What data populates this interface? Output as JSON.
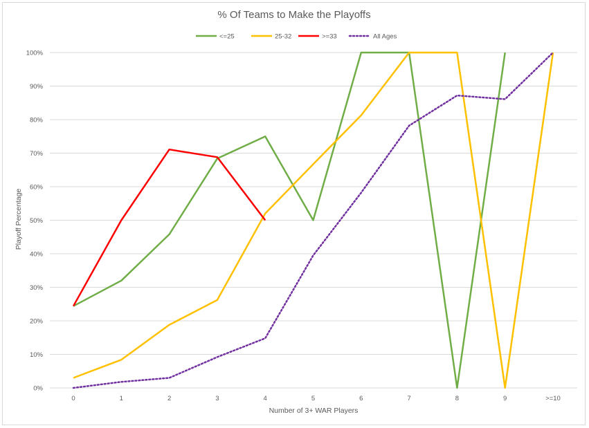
{
  "chart_data": {
    "type": "line",
    "title": "% Of Teams to Make the Playoffs",
    "xlabel": "Number of 3+ WAR Players",
    "ylabel": "Playoff Percentage",
    "categories": [
      "0",
      "1",
      "2",
      "3",
      "4",
      "5",
      "6",
      "7",
      "8",
      "9",
      ">=10"
    ],
    "ylim": [
      0,
      100
    ],
    "yticks": [
      "0%",
      "10%",
      "20%",
      "30%",
      "40%",
      "50%",
      "60%",
      "70%",
      "80%",
      "90%",
      "100%"
    ],
    "grid": true,
    "legend_position": "top",
    "series": [
      {
        "name": "<=25",
        "color": "#70ad47",
        "dash": "solid",
        "values": [
          24.4,
          32,
          45.8,
          68.4,
          75,
          50,
          100,
          100,
          0,
          100,
          null
        ]
      },
      {
        "name": "25-32",
        "color": "#ffc000",
        "dash": "solid",
        "values": [
          3,
          8.4,
          18.8,
          26.2,
          52,
          66.7,
          81.3,
          100,
          100,
          0,
          100
        ]
      },
      {
        "name": ">=33",
        "color": "#ff0000",
        "dash": "solid",
        "values": [
          24.4,
          50,
          71.1,
          68.8,
          50,
          null,
          null,
          null,
          null,
          null,
          null
        ]
      },
      {
        "name": "All Ages",
        "color": "#7030a0",
        "dash": "dotted",
        "values": [
          0,
          1.8,
          3,
          9.2,
          14.8,
          39.5,
          58.2,
          78.2,
          87.2,
          86.1,
          100
        ]
      }
    ]
  }
}
